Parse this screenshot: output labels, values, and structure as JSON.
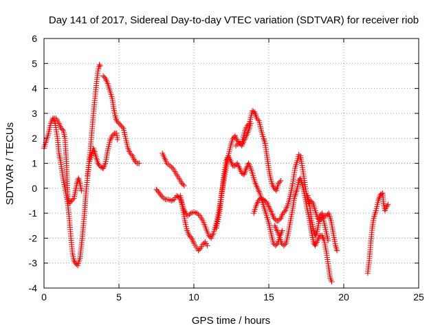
{
  "chart_data": {
    "type": "scatter",
    "title": "Day 141 of 2017, Sidereal Day-to-day VTEC variation (SDTVAR) for receiver riob",
    "xlabel": "GPS time / hours",
    "ylabel": "SDTVAR / TECUs",
    "xlim": [
      0,
      25
    ],
    "ylim": [
      -4,
      6
    ],
    "xticks": [
      0,
      5,
      10,
      15,
      20,
      25
    ],
    "yticks": [
      -4,
      -3,
      -2,
      -1,
      0,
      1,
      2,
      3,
      4,
      5,
      6
    ],
    "grid": true,
    "marker": "+",
    "color": "#ff0000",
    "series": [
      {
        "name": "track-01",
        "points": [
          [
            0.0,
            1.6
          ],
          [
            0.15,
            1.9
          ],
          [
            0.3,
            2.2
          ],
          [
            0.45,
            2.6
          ],
          [
            0.6,
            2.8
          ],
          [
            0.8,
            2.8
          ],
          [
            1.0,
            2.6
          ],
          [
            1.15,
            2.4
          ],
          [
            1.3,
            2.3
          ],
          [
            1.4,
            2.0
          ],
          [
            1.5,
            1.0
          ],
          [
            1.55,
            0.2
          ],
          [
            1.6,
            -0.4
          ],
          [
            1.7,
            -0.6
          ],
          [
            1.85,
            -0.5
          ],
          [
            2.0,
            -0.4
          ],
          [
            2.1,
            -0.1
          ],
          [
            2.2,
            0.2
          ],
          [
            2.3,
            0.4
          ],
          [
            2.4,
            0.2
          ],
          [
            2.5,
            -0.1
          ]
        ]
      },
      {
        "name": "track-02",
        "points": [
          [
            0.6,
            2.8
          ],
          [
            0.75,
            2.6
          ],
          [
            0.9,
            2.0
          ],
          [
            1.0,
            1.4
          ],
          [
            1.1,
            1.1
          ],
          [
            1.2,
            0.7
          ],
          [
            1.3,
            0.3
          ],
          [
            1.4,
            0.0
          ],
          [
            1.5,
            -0.3
          ],
          [
            1.6,
            -0.7
          ],
          [
            1.7,
            -1.3
          ],
          [
            1.8,
            -2.0
          ],
          [
            1.9,
            -2.6
          ],
          [
            2.0,
            -2.9
          ],
          [
            2.1,
            -3.0
          ],
          [
            2.25,
            -3.1
          ],
          [
            2.4,
            -2.8
          ],
          [
            2.55,
            -2.0
          ],
          [
            2.7,
            -1.0
          ],
          [
            2.8,
            -0.2
          ],
          [
            2.9,
            0.4
          ],
          [
            3.0,
            1.0
          ],
          [
            3.15,
            1.3
          ],
          [
            3.3,
            1.6
          ],
          [
            3.4,
            1.4
          ],
          [
            3.5,
            1.2
          ],
          [
            3.6,
            1.0
          ],
          [
            3.7,
            0.9
          ],
          [
            3.8,
            0.85
          ],
          [
            3.95,
            0.8
          ]
        ]
      },
      {
        "name": "track-03",
        "points": [
          [
            2.9,
            0.5
          ],
          [
            3.0,
            1.0
          ],
          [
            3.1,
            1.6
          ],
          [
            3.2,
            2.3
          ],
          [
            3.3,
            3.0
          ],
          [
            3.4,
            3.6
          ],
          [
            3.5,
            4.2
          ],
          [
            3.6,
            4.7
          ],
          [
            3.7,
            4.95
          ],
          [
            3.75,
            4.9
          ]
        ]
      },
      {
        "name": "track-04",
        "points": [
          [
            3.95,
            4.5
          ],
          [
            4.1,
            4.4
          ],
          [
            4.25,
            4.2
          ],
          [
            4.4,
            3.9
          ],
          [
            4.55,
            3.6
          ],
          [
            4.65,
            3.2
          ],
          [
            4.75,
            2.9
          ],
          [
            4.85,
            2.7
          ],
          [
            5.0,
            2.6
          ],
          [
            5.15,
            2.5
          ],
          [
            5.3,
            2.4
          ],
          [
            5.45,
            2.0
          ],
          [
            5.6,
            1.6
          ],
          [
            5.75,
            1.4
          ],
          [
            5.9,
            1.3
          ],
          [
            6.05,
            1.1
          ],
          [
            6.2,
            1.0
          ],
          [
            6.35,
            1.0
          ]
        ]
      },
      {
        "name": "track-05",
        "points": [
          [
            3.95,
            0.8
          ],
          [
            4.1,
            1.0
          ],
          [
            4.25,
            1.5
          ],
          [
            4.4,
            1.9
          ],
          [
            4.55,
            2.1
          ],
          [
            4.7,
            2.2
          ],
          [
            4.85,
            2.2
          ],
          [
            4.9,
            1.95
          ]
        ]
      },
      {
        "name": "track-06",
        "points": [
          [
            7.9,
            1.4
          ],
          [
            8.05,
            1.2
          ],
          [
            8.2,
            1.0
          ],
          [
            8.4,
            0.9
          ],
          [
            8.6,
            0.8
          ],
          [
            8.8,
            0.6
          ],
          [
            9.0,
            0.4
          ],
          [
            9.2,
            0.2
          ],
          [
            9.35,
            0.1
          ]
        ]
      },
      {
        "name": "track-07",
        "points": [
          [
            7.5,
            -0.05
          ],
          [
            7.7,
            -0.2
          ],
          [
            7.9,
            -0.35
          ],
          [
            8.1,
            -0.45
          ],
          [
            8.3,
            -0.45
          ],
          [
            8.5,
            -0.5
          ],
          [
            8.7,
            -0.45
          ],
          [
            8.85,
            -0.3
          ],
          [
            9.0,
            -0.35
          ],
          [
            9.15,
            -0.5
          ],
          [
            9.3,
            -0.8
          ],
          [
            9.45,
            -1.0
          ],
          [
            9.6,
            -1.1
          ],
          [
            9.8,
            -1.0
          ],
          [
            10.0,
            -0.95
          ],
          [
            10.2,
            -1.0
          ],
          [
            10.4,
            -1.1
          ],
          [
            10.6,
            -1.3
          ],
          [
            10.8,
            -1.6
          ],
          [
            11.0,
            -1.9
          ],
          [
            11.15,
            -2.0
          ],
          [
            11.3,
            -1.8
          ],
          [
            11.5,
            -1.4
          ],
          [
            11.7,
            -0.8
          ],
          [
            11.85,
            -0.2
          ],
          [
            12.0,
            0.3
          ],
          [
            12.15,
            0.8
          ],
          [
            12.3,
            1.3
          ],
          [
            12.45,
            1.7
          ],
          [
            12.6,
            2.0
          ],
          [
            12.75,
            2.1
          ],
          [
            12.9,
            1.9
          ],
          [
            13.05,
            1.8
          ],
          [
            13.2,
            1.7
          ],
          [
            13.35,
            1.9
          ],
          [
            13.5,
            2.1
          ],
          [
            13.65,
            2.3
          ],
          [
            13.8,
            2.6
          ]
        ]
      },
      {
        "name": "track-08",
        "points": [
          [
            9.1,
            -0.3
          ],
          [
            9.25,
            -0.8
          ],
          [
            9.4,
            -1.3
          ],
          [
            9.55,
            -1.7
          ],
          [
            9.7,
            -1.9
          ],
          [
            9.85,
            -2.0
          ],
          [
            10.0,
            -2.2
          ],
          [
            10.15,
            -2.35
          ],
          [
            10.3,
            -2.5
          ],
          [
            10.45,
            -2.4
          ],
          [
            10.6,
            -2.25
          ],
          [
            10.75,
            -2.15
          ],
          [
            10.9,
            -2.3
          ]
        ]
      },
      {
        "name": "track-09",
        "points": [
          [
            11.5,
            -1.6
          ],
          [
            11.7,
            -1.0
          ],
          [
            11.85,
            -0.3
          ],
          [
            12.0,
            0.5
          ],
          [
            12.15,
            1.1
          ],
          [
            12.3,
            1.3
          ],
          [
            12.45,
            1.1
          ],
          [
            12.6,
            0.9
          ],
          [
            12.75,
            0.9
          ],
          [
            12.9,
            1.0
          ],
          [
            13.05,
            0.8
          ],
          [
            13.2,
            0.6
          ],
          [
            13.35,
            0.55
          ],
          [
            13.5,
            0.8
          ],
          [
            13.65,
            1.0
          ],
          [
            13.8,
            0.8
          ],
          [
            13.95,
            0.5
          ],
          [
            14.1,
            0.2
          ],
          [
            14.25,
            0.0
          ],
          [
            14.4,
            -0.2
          ],
          [
            14.55,
            -0.5
          ],
          [
            14.7,
            -0.8
          ],
          [
            14.85,
            -1.1
          ],
          [
            15.0,
            -1.4
          ],
          [
            15.15,
            -1.8
          ],
          [
            15.3,
            -2.2
          ],
          [
            15.45,
            -2.3
          ],
          [
            15.6,
            -2.2
          ],
          [
            15.75,
            -1.9
          ],
          [
            15.9,
            -1.7
          ]
        ]
      },
      {
        "name": "track-10",
        "points": [
          [
            12.8,
            1.7
          ],
          [
            13.0,
            1.8
          ],
          [
            13.2,
            1.8
          ],
          [
            13.4,
            2.3
          ],
          [
            13.55,
            2.5
          ],
          [
            13.7,
            2.6
          ],
          [
            13.8,
            2.85
          ],
          [
            13.9,
            3.1
          ],
          [
            14.05,
            3.05
          ],
          [
            14.2,
            2.8
          ],
          [
            14.35,
            2.7
          ],
          [
            14.5,
            2.3
          ],
          [
            14.65,
            2.0
          ],
          [
            14.75,
            1.8
          ],
          [
            14.85,
            1.4
          ],
          [
            14.95,
            1.0
          ],
          [
            15.05,
            0.6
          ],
          [
            15.2,
            0.2
          ],
          [
            15.35,
            0.0
          ],
          [
            15.5,
            -0.1
          ],
          [
            15.65,
            0.2
          ],
          [
            15.8,
            0.3
          ]
        ]
      },
      {
        "name": "track-11",
        "points": [
          [
            14.0,
            -1.0
          ],
          [
            14.15,
            -0.7
          ],
          [
            14.3,
            -0.5
          ],
          [
            14.45,
            -0.4
          ],
          [
            14.6,
            -0.45
          ],
          [
            14.75,
            -0.5
          ],
          [
            14.9,
            -0.6
          ],
          [
            15.05,
            -0.8
          ],
          [
            15.2,
            -1.0
          ],
          [
            15.35,
            -1.2
          ],
          [
            15.5,
            -1.3
          ],
          [
            15.65,
            -1.3
          ],
          [
            15.8,
            -1.2
          ],
          [
            15.95,
            -1.0
          ],
          [
            16.1,
            -0.9
          ],
          [
            16.25,
            -0.7
          ],
          [
            16.4,
            -0.4
          ],
          [
            16.5,
            -0.1
          ],
          [
            16.6,
            0.2
          ],
          [
            16.75,
            0.8
          ],
          [
            16.9,
            1.1
          ],
          [
            17.0,
            1.35
          ],
          [
            17.1,
            1.3
          ],
          [
            17.2,
            1.0
          ],
          [
            17.35,
            0.4
          ],
          [
            17.5,
            -0.2
          ],
          [
            17.65,
            -0.6
          ],
          [
            17.8,
            -0.5
          ],
          [
            17.95,
            -0.6
          ],
          [
            18.1,
            -0.9
          ],
          [
            18.25,
            -1.2
          ],
          [
            18.4,
            -1.3
          ],
          [
            18.55,
            -1.2
          ],
          [
            18.7,
            -1.1
          ],
          [
            18.85,
            -1.1
          ],
          [
            19.0,
            -1.0
          ],
          [
            19.15,
            -1.3
          ],
          [
            19.3,
            -1.8
          ],
          [
            19.45,
            -2.3
          ],
          [
            19.55,
            -2.5
          ]
        ]
      },
      {
        "name": "track-12",
        "points": [
          [
            15.4,
            -1.5
          ],
          [
            15.55,
            -1.7
          ],
          [
            15.7,
            -1.9
          ],
          [
            15.85,
            -2.2
          ],
          [
            16.0,
            -2.3
          ],
          [
            16.15,
            -2.2
          ],
          [
            16.3,
            -1.8
          ],
          [
            16.45,
            -1.3
          ],
          [
            16.6,
            -0.8
          ],
          [
            16.7,
            -0.4
          ],
          [
            16.8,
            -0.2
          ],
          [
            16.9,
            0.0
          ],
          [
            17.0,
            0.3
          ],
          [
            17.1,
            0.4
          ],
          [
            17.25,
            0.1
          ],
          [
            17.4,
            -0.3
          ],
          [
            17.55,
            -0.8
          ],
          [
            17.7,
            -1.2
          ],
          [
            17.8,
            -1.6
          ],
          [
            17.9,
            -1.9
          ],
          [
            18.0,
            -2.2
          ],
          [
            18.1,
            -2.3
          ],
          [
            18.25,
            -2.1
          ],
          [
            18.4,
            -1.9
          ],
          [
            18.55,
            -1.9
          ],
          [
            18.7,
            -2.1
          ],
          [
            18.85,
            -2.6
          ],
          [
            19.0,
            -3.2
          ],
          [
            19.1,
            -3.6
          ],
          [
            19.2,
            -3.75
          ]
        ]
      },
      {
        "name": "track-13",
        "points": [
          [
            17.6,
            -0.3
          ],
          [
            17.75,
            -0.8
          ],
          [
            17.85,
            -1.3
          ],
          [
            18.0,
            -1.7
          ],
          [
            18.1,
            -1.9
          ],
          [
            18.2,
            -1.8
          ],
          [
            18.3,
            -1.5
          ],
          [
            18.4,
            -1.1
          ],
          [
            18.55,
            -1.0
          ],
          [
            18.7,
            -1.4
          ],
          [
            18.85,
            -1.8
          ],
          [
            18.95,
            -2.1
          ]
        ]
      },
      {
        "name": "track-14",
        "points": [
          [
            21.6,
            -3.4
          ],
          [
            21.7,
            -2.9
          ],
          [
            21.8,
            -2.2
          ],
          [
            21.9,
            -1.6
          ],
          [
            22.0,
            -1.2
          ],
          [
            22.15,
            -0.9
          ],
          [
            22.3,
            -0.5
          ],
          [
            22.45,
            -0.25
          ],
          [
            22.6,
            -0.2
          ],
          [
            22.65,
            -0.6
          ],
          [
            22.75,
            -0.9
          ],
          [
            22.85,
            -0.75
          ],
          [
            22.95,
            -0.65
          ]
        ]
      }
    ]
  }
}
